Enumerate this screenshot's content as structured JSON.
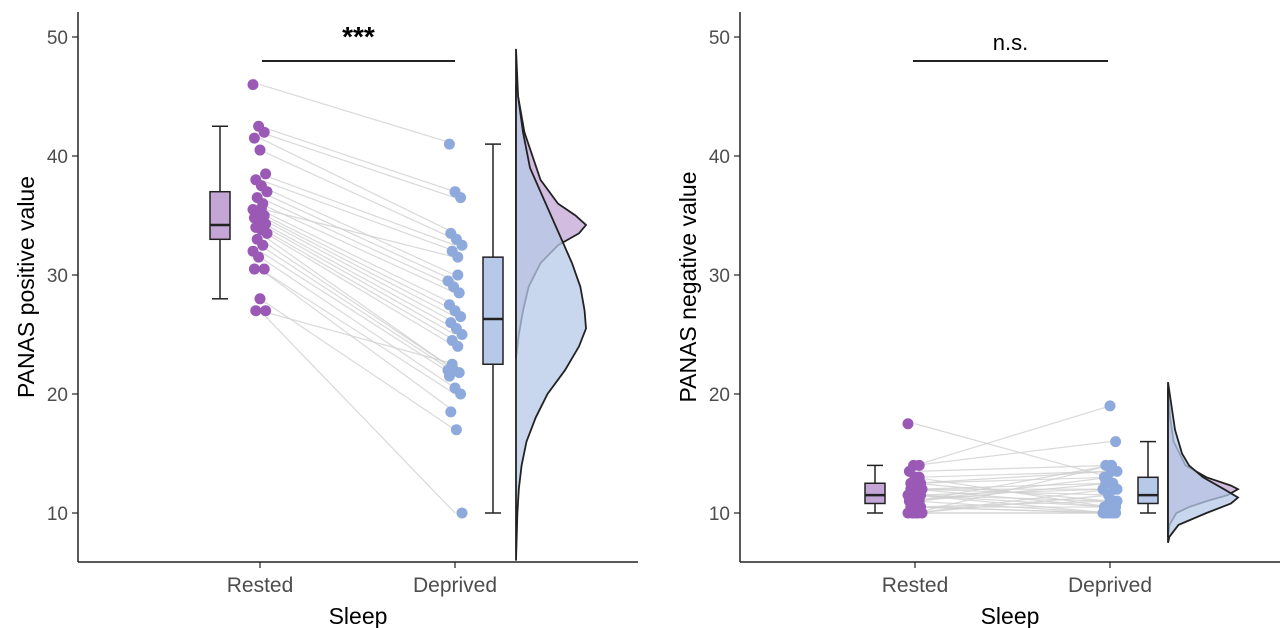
{
  "chart_data": [
    {
      "type": "raincloud",
      "ylabel": "PANAS positive value",
      "xlabel": "Sleep",
      "categories": [
        "Rested",
        "Deprived"
      ],
      "yticks": [
        10,
        20,
        30,
        40,
        50
      ],
      "ylim": [
        6,
        51
      ],
      "significance": "***",
      "grid": false,
      "colors": {
        "Rested": "#9b59b6",
        "Deprived": "#8ea9db",
        "rested_fill": "#c3a6d6",
        "deprived_fill": "#b7c9e8"
      },
      "boxplots": [
        {
          "category": "Rested",
          "min": 28,
          "q1": 33,
          "median": 34.2,
          "q3": 37,
          "max": 42.5
        },
        {
          "category": "Deprived",
          "min": 10,
          "q1": 22.5,
          "median": 26.3,
          "q3": 31.5,
          "max": 41
        }
      ],
      "pairs": [
        [
          46,
          41
        ],
        [
          42.5,
          37
        ],
        [
          42,
          36.5
        ],
        [
          41.5,
          33.5
        ],
        [
          40.5,
          33
        ],
        [
          38.5,
          32.5
        ],
        [
          38,
          32
        ],
        [
          37.5,
          30
        ],
        [
          37,
          29.5
        ],
        [
          36.5,
          29
        ],
        [
          36,
          28.5
        ],
        [
          35.5,
          27.5
        ],
        [
          35.2,
          27
        ],
        [
          35,
          26.5
        ],
        [
          34.8,
          26
        ],
        [
          34.5,
          25.5
        ],
        [
          34.3,
          25
        ],
        [
          34,
          24.5
        ],
        [
          33.8,
          24
        ],
        [
          33.5,
          22
        ],
        [
          33,
          22
        ],
        [
          32.5,
          21.8
        ],
        [
          32,
          21.5
        ],
        [
          31.5,
          20.5
        ],
        [
          30.5,
          20
        ],
        [
          30.5,
          18.5
        ],
        [
          28,
          17
        ],
        [
          27,
          10
        ],
        [
          27,
          22.5
        ],
        [
          35.6,
          31.5
        ]
      ],
      "density": {
        "Rested": [
          [
            46,
            0.0
          ],
          [
            42,
            0.12
          ],
          [
            38,
            0.35
          ],
          [
            36,
            0.6
          ],
          [
            35,
            0.85
          ],
          [
            34.2,
            1.0
          ],
          [
            33.5,
            0.9
          ],
          [
            32.5,
            0.6
          ],
          [
            31,
            0.35
          ],
          [
            29,
            0.18
          ],
          [
            27,
            0.1
          ],
          [
            25,
            0.04
          ],
          [
            23,
            0.0
          ]
        ],
        "Deprived": [
          [
            49,
            0.0
          ],
          [
            45,
            0.03
          ],
          [
            42,
            0.1
          ],
          [
            39,
            0.2
          ],
          [
            37,
            0.35
          ],
          [
            35,
            0.5
          ],
          [
            33,
            0.65
          ],
          [
            31,
            0.8
          ],
          [
            29,
            0.92
          ],
          [
            27,
            0.98
          ],
          [
            25.5,
            1.0
          ],
          [
            24,
            0.9
          ],
          [
            22,
            0.7
          ],
          [
            20,
            0.45
          ],
          [
            18,
            0.28
          ],
          [
            16,
            0.15
          ],
          [
            14,
            0.08
          ],
          [
            12,
            0.04
          ],
          [
            10,
            0.02
          ],
          [
            6,
            0.0
          ]
        ]
      }
    },
    {
      "type": "raincloud",
      "ylabel": "PANAS negative value",
      "xlabel": "Sleep",
      "categories": [
        "Rested",
        "Deprived"
      ],
      "yticks": [
        10,
        20,
        30,
        40,
        50
      ],
      "ylim": [
        6,
        51
      ],
      "significance": "n.s.",
      "grid": false,
      "colors": {
        "Rested": "#9b59b6",
        "Deprived": "#8ea9db",
        "rested_fill": "#c3a6d6",
        "deprived_fill": "#b7c9e8"
      },
      "boxplots": [
        {
          "category": "Rested",
          "min": 10,
          "q1": 10.8,
          "median": 11.5,
          "q3": 12.5,
          "max": 14
        },
        {
          "category": "Deprived",
          "min": 10,
          "q1": 10.8,
          "median": 11.5,
          "q3": 13,
          "max": 16
        }
      ],
      "pairs": [
        [
          17.5,
          13
        ],
        [
          14,
          19
        ],
        [
          14,
          16
        ],
        [
          13.5,
          14
        ],
        [
          13,
          13.5
        ],
        [
          12.5,
          13.5
        ],
        [
          12.5,
          13
        ],
        [
          12,
          12.5
        ],
        [
          12,
          12
        ],
        [
          12,
          11.5
        ],
        [
          11.5,
          11
        ],
        [
          11.5,
          10.5
        ],
        [
          11.5,
          10
        ],
        [
          11,
          10
        ],
        [
          11,
          12.5
        ],
        [
          11,
          14
        ],
        [
          10.5,
          11
        ],
        [
          10.5,
          10
        ],
        [
          10.5,
          10.5
        ],
        [
          10,
          10
        ],
        [
          10,
          11.5
        ],
        [
          10,
          12
        ],
        [
          10,
          10
        ],
        [
          12.5,
          11
        ],
        [
          13,
          10.5
        ],
        [
          11,
          13
        ],
        [
          10,
          14
        ],
        [
          11.5,
          12
        ],
        [
          12,
          10.5
        ],
        [
          10.5,
          10
        ]
      ],
      "density": {
        "Rested": [
          [
            20.5,
            0.0
          ],
          [
            18,
            0.03
          ],
          [
            16,
            0.08
          ],
          [
            14,
            0.25
          ],
          [
            13,
            0.55
          ],
          [
            12.3,
            0.9
          ],
          [
            12,
            1.0
          ],
          [
            11.5,
            0.85
          ],
          [
            11,
            0.55
          ],
          [
            10.5,
            0.3
          ],
          [
            10,
            0.12
          ],
          [
            9,
            0.02
          ],
          [
            8,
            0.0
          ]
        ],
        "Deprived": [
          [
            21,
            0.0
          ],
          [
            19,
            0.05
          ],
          [
            17,
            0.1
          ],
          [
            15,
            0.2
          ],
          [
            14,
            0.3
          ],
          [
            13,
            0.5
          ],
          [
            12,
            0.8
          ],
          [
            11.3,
            1.0
          ],
          [
            10.8,
            0.9
          ],
          [
            10,
            0.55
          ],
          [
            9,
            0.15
          ],
          [
            8,
            0.02
          ],
          [
            7.5,
            0.0
          ]
        ]
      }
    }
  ]
}
